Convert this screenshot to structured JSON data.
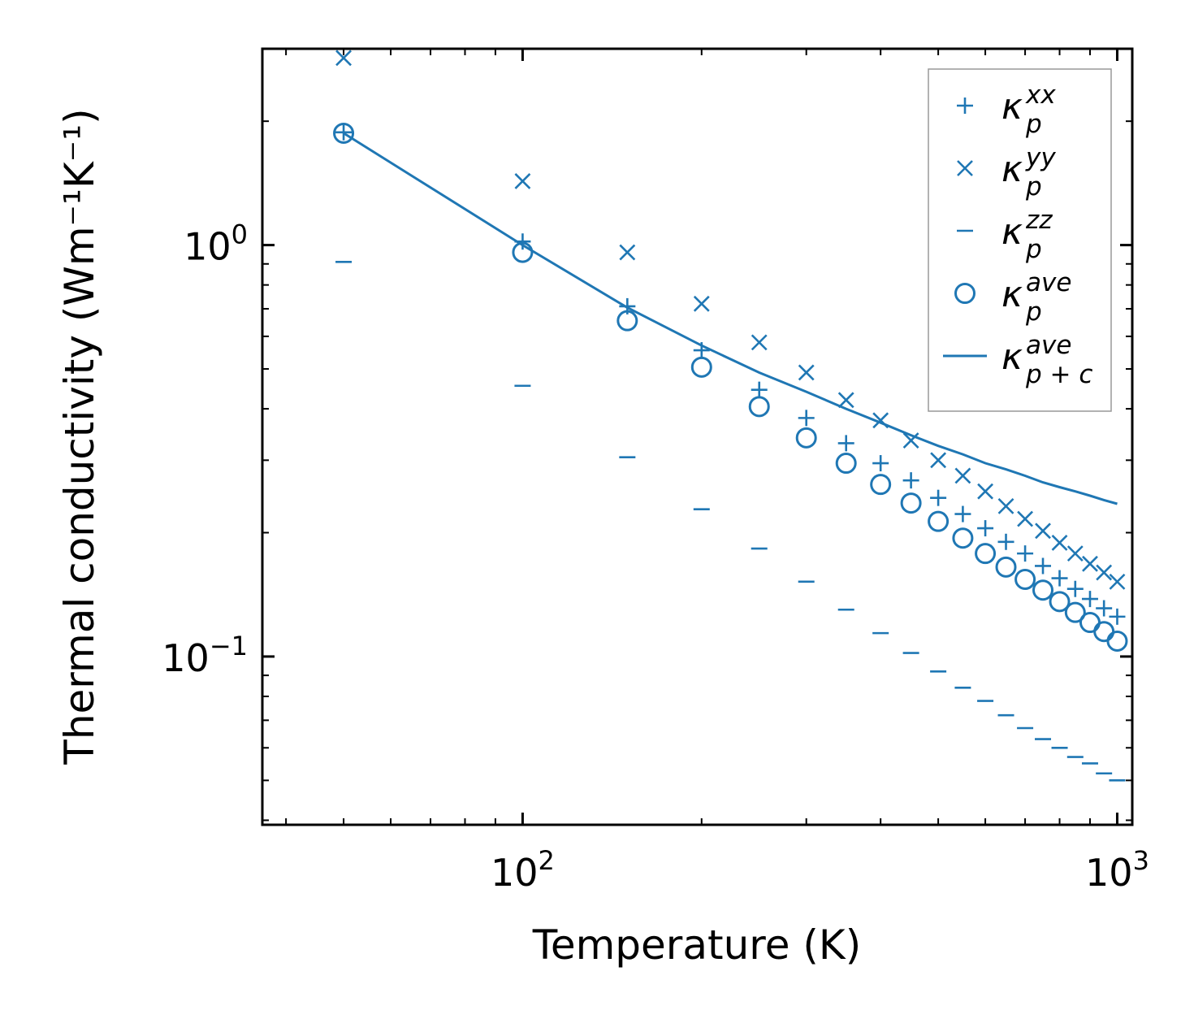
{
  "chart_data": {
    "type": "scatter",
    "title": "",
    "xlabel": "Temperature (K)",
    "ylabel": "Thermal conductivity (Wm⁻¹K⁻¹)",
    "xscale": "log",
    "yscale": "log",
    "xlim": [
      36.5,
      1060
    ],
    "ylim": [
      0.039,
      3.0
    ],
    "color": "#1f77b4",
    "x_ticks": [
      {
        "value": 100,
        "base": "10",
        "exp": "2"
      },
      {
        "value": 1000,
        "base": "10",
        "exp": "3"
      }
    ],
    "y_ticks": [
      {
        "value": 0.1,
        "base": "10",
        "exp": "−1"
      },
      {
        "value": 1,
        "base": "10",
        "exp": "0"
      }
    ],
    "legend_position": "top-right",
    "x": [
      50,
      100,
      150,
      200,
      250,
      300,
      350,
      400,
      450,
      500,
      550,
      600,
      650,
      700,
      750,
      800,
      850,
      900,
      950,
      1000
    ],
    "series": [
      {
        "name": "kappa_p^xx",
        "symbol": "κ",
        "sub": "p",
        "sup": "xx",
        "marker": "plus",
        "values": [
          1.88,
          1.02,
          0.71,
          0.555,
          0.445,
          0.38,
          0.33,
          0.295,
          0.268,
          0.243,
          0.222,
          0.205,
          0.19,
          0.178,
          0.166,
          0.155,
          0.146,
          0.138,
          0.131,
          0.125
        ]
      },
      {
        "name": "kappa_p^yy",
        "symbol": "κ",
        "sub": "p",
        "sup": "yy",
        "marker": "x",
        "values": [
          2.85,
          1.43,
          0.96,
          0.72,
          0.58,
          0.49,
          0.42,
          0.375,
          0.335,
          0.3,
          0.275,
          0.252,
          0.232,
          0.216,
          0.202,
          0.189,
          0.178,
          0.168,
          0.16,
          0.152
        ]
      },
      {
        "name": "kappa_p^zz",
        "symbol": "κ",
        "sub": "p",
        "sup": "zz",
        "marker": "hline",
        "values": [
          0.91,
          0.455,
          0.305,
          0.228,
          0.183,
          0.152,
          0.13,
          0.114,
          0.102,
          0.092,
          0.084,
          0.078,
          0.072,
          0.067,
          0.063,
          0.06,
          0.057,
          0.055,
          0.052,
          0.05
        ]
      },
      {
        "name": "kappa_p^ave",
        "symbol": "κ",
        "sub": "p",
        "sup": "ave",
        "marker": "circle",
        "values": [
          1.87,
          0.96,
          0.655,
          0.505,
          0.405,
          0.34,
          0.295,
          0.262,
          0.236,
          0.213,
          0.194,
          0.178,
          0.165,
          0.154,
          0.145,
          0.136,
          0.128,
          0.121,
          0.115,
          0.109
        ]
      },
      {
        "name": "kappa_p+c^ave",
        "symbol": "κ",
        "sub": "p + c",
        "sup": "ave",
        "marker": "line",
        "values": [
          1.87,
          1.0,
          0.705,
          0.57,
          0.49,
          0.44,
          0.4,
          0.37,
          0.345,
          0.325,
          0.31,
          0.295,
          0.285,
          0.275,
          0.265,
          0.258,
          0.252,
          0.246,
          0.24,
          0.235
        ]
      }
    ]
  }
}
